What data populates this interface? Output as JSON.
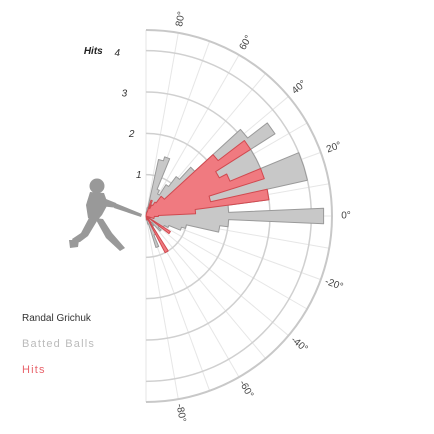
{
  "chart_data": {
    "type": "polar-bar",
    "title": "",
    "radial_axis": {
      "label": "Hits",
      "ticks": [
        "1",
        "2",
        "3",
        "4"
      ],
      "max": 4.5
    },
    "angle_axis": {
      "ticks": [
        "80°",
        "60°",
        "40°",
        "20°",
        "0°",
        "-20°",
        "-40°",
        "-60°",
        "-80°"
      ],
      "range": [
        -90,
        90
      ]
    },
    "angles": [
      85,
      80,
      75,
      70,
      65,
      60,
      55,
      50,
      45,
      40,
      35,
      30,
      25,
      20,
      15,
      10,
      5,
      0,
      -5,
      -10,
      -15,
      -20,
      -25,
      -30,
      -35,
      -40,
      -45,
      -50,
      -55,
      -60,
      -65,
      -70,
      -75,
      -80,
      -85
    ],
    "series": [
      {
        "name": "Batted Balls",
        "color": "#c8c8c8",
        "values": [
          0.1,
          0.2,
          1.4,
          1.5,
          0.7,
          0.6,
          0.9,
          1.2,
          1.6,
          3.1,
          3.7,
          3.0,
          3.0,
          4.0,
          4.0,
          3.0,
          2.0,
          4.3,
          2.0,
          1.8,
          1.0,
          0.9,
          0.6,
          0.5,
          0.5,
          0.4,
          0.5,
          0.2,
          0.3,
          0.5,
          0.5,
          0.8,
          0.2,
          0.1,
          0.1
        ]
      },
      {
        "name": "Hits",
        "color": "#f07a80",
        "values": [
          0,
          0,
          0.1,
          0.4,
          0.2,
          0.3,
          0.4,
          0.6,
          0.6,
          2.2,
          3.0,
          2.0,
          2.2,
          3.0,
          1.6,
          3.0,
          1.2,
          0.3,
          0.2,
          0.2,
          0.2,
          0,
          0,
          0.1,
          0.7,
          0.1,
          0,
          0.1,
          0.2,
          1.0,
          0,
          0,
          0.1,
          0,
          0
        ]
      }
    ]
  },
  "legend": {
    "player": "Randal Grichuk",
    "batted": "Batted Balls",
    "hits": "Hits"
  }
}
